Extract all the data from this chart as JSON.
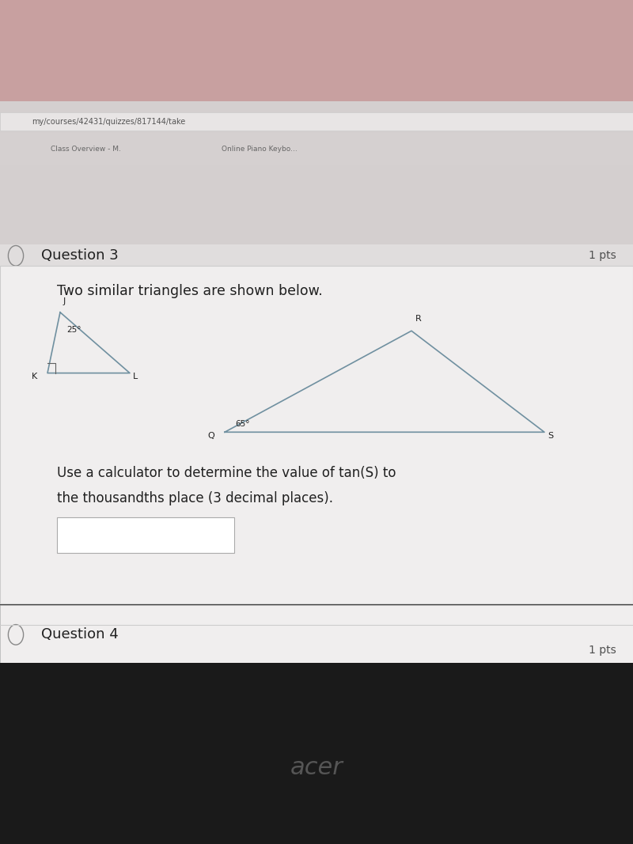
{
  "url_text": "my/courses/42431/quizzes/817144/take",
  "tab_text1": "Class Overview - M.",
  "tab_text2": "Online Piano Keybo...",
  "question3_label": "Question 3",
  "question3_pts": "1 pts",
  "intro_text": "Two similar triangles are shown below.",
  "angle_small": "25°",
  "angle_large": "65°",
  "label_J": "J",
  "label_K": "K",
  "label_L": "L",
  "label_R": "R",
  "label_Q": "Q",
  "label_S": "S",
  "body_text_line1": "Use a calculator to determine the value of tan(S) to",
  "body_text_line2": "the thousandths place (3 decimal places).",
  "question4_label": "Question 4",
  "question4_pts": "1 pts",
  "acer_text": "acer",
  "line_color": "#7090a0",
  "text_color_dark": "#202020",
  "text_color_mid": "#505050"
}
